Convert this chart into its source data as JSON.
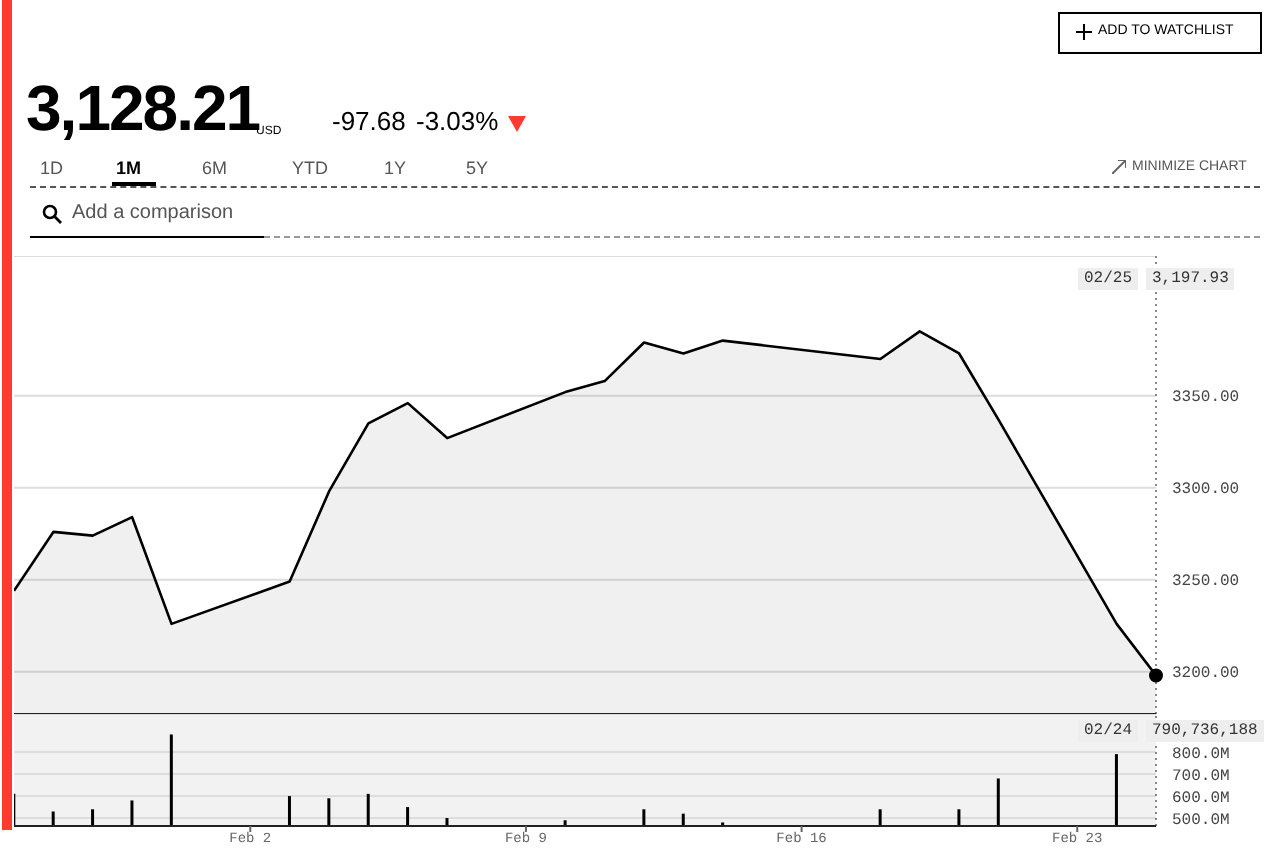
{
  "chart_data": [
    {
      "type": "area",
      "title": "3,128.21",
      "annotations": [
        "USD",
        "-97.68",
        "-3.03%",
        "1D",
        "1M",
        "6M",
        "YTD",
        "1Y",
        "5Y",
        "MINIMIZE CHART",
        "Add a comparison",
        "ADD TO WATCHLIST",
        "02/25",
        "3,197.93"
      ],
      "x": [
        "--01-27",
        "--01-28",
        "--01-29",
        "--01-30",
        "--01-31",
        "--02-03",
        "--02-04",
        "--02-05",
        "--02-06",
        "--02-07",
        "--02-10",
        "--02-11",
        "--02-12",
        "--02-13",
        "--02-14",
        "--02-18",
        "--02-19",
        "--02-20",
        "--02-21",
        "--02-24",
        "--02-25"
      ],
      "series": [
        {
          "color": "#000000",
          "values": [
            3244,
            3276,
            3274,
            3284,
            3226,
            3249,
            3298,
            3335,
            3346,
            3327,
            3352,
            3358,
            3379,
            3373,
            3380,
            3370,
            3385,
            3373,
            3337,
            3226,
            3197.93
          ]
        }
      ],
      "xlim": [
        "--01-27",
        "--02-25"
      ],
      "ylim": [
        3177,
        3426
      ],
      "yticks": [
        {
          "value": 3200,
          "label": "3200.00"
        },
        {
          "value": 3250,
          "label": "3250.00"
        },
        {
          "value": 3300,
          "label": "3300.00"
        },
        {
          "value": 3350,
          "label": "3350.00"
        }
      ],
      "grid": "y",
      "tick_labels": "y",
      "ref_lines": [
        {
          "axis": "x",
          "value": "--02-25",
          "color": "#888888",
          "line_style": "dotted"
        }
      ]
    },
    {
      "type": "bar",
      "annotations": [
        "02/24",
        "790,736,188"
      ],
      "x": [
        "--01-27",
        "--01-28",
        "--01-29",
        "--01-30",
        "--01-31",
        "--02-03",
        "--02-04",
        "--02-05",
        "--02-06",
        "--02-07",
        "--02-10",
        "--02-12",
        "--02-13",
        "--02-14",
        "--02-18",
        "--02-20",
        "--02-21",
        "--02-24"
      ],
      "series": [
        {
          "color": "#000000",
          "values": [
            610000000,
            530000000,
            540000000,
            580000000,
            880000000,
            600000000,
            590000000,
            610000000,
            550000000,
            500000000,
            490000000,
            540000000,
            520000000,
            480000000,
            540000000,
            540000000,
            680000000,
            790736188
          ]
        }
      ],
      "xlim": [
        "--01-27",
        "--02-25"
      ],
      "xticks": [
        {
          "value": "--02-02",
          "label": "Feb 2"
        },
        {
          "value": "--02-09",
          "label": "Feb 9"
        },
        {
          "value": "--02-16",
          "label": "Feb 16"
        },
        {
          "value": "--02-23",
          "label": "Feb 23"
        }
      ],
      "ylim": [
        464000000,
        973000000
      ],
      "yticks": [
        {
          "value": 500000000,
          "label": "500.0M"
        },
        {
          "value": 600000000,
          "label": "600.0M"
        },
        {
          "value": 700000000,
          "label": "700.0M"
        },
        {
          "value": 800000000,
          "label": "800.0M"
        }
      ],
      "grid": "y",
      "ref_lines": [
        {
          "axis": "x",
          "value": "--02-25",
          "color": "#888888",
          "line_style": "dotted"
        }
      ]
    }
  ]
}
